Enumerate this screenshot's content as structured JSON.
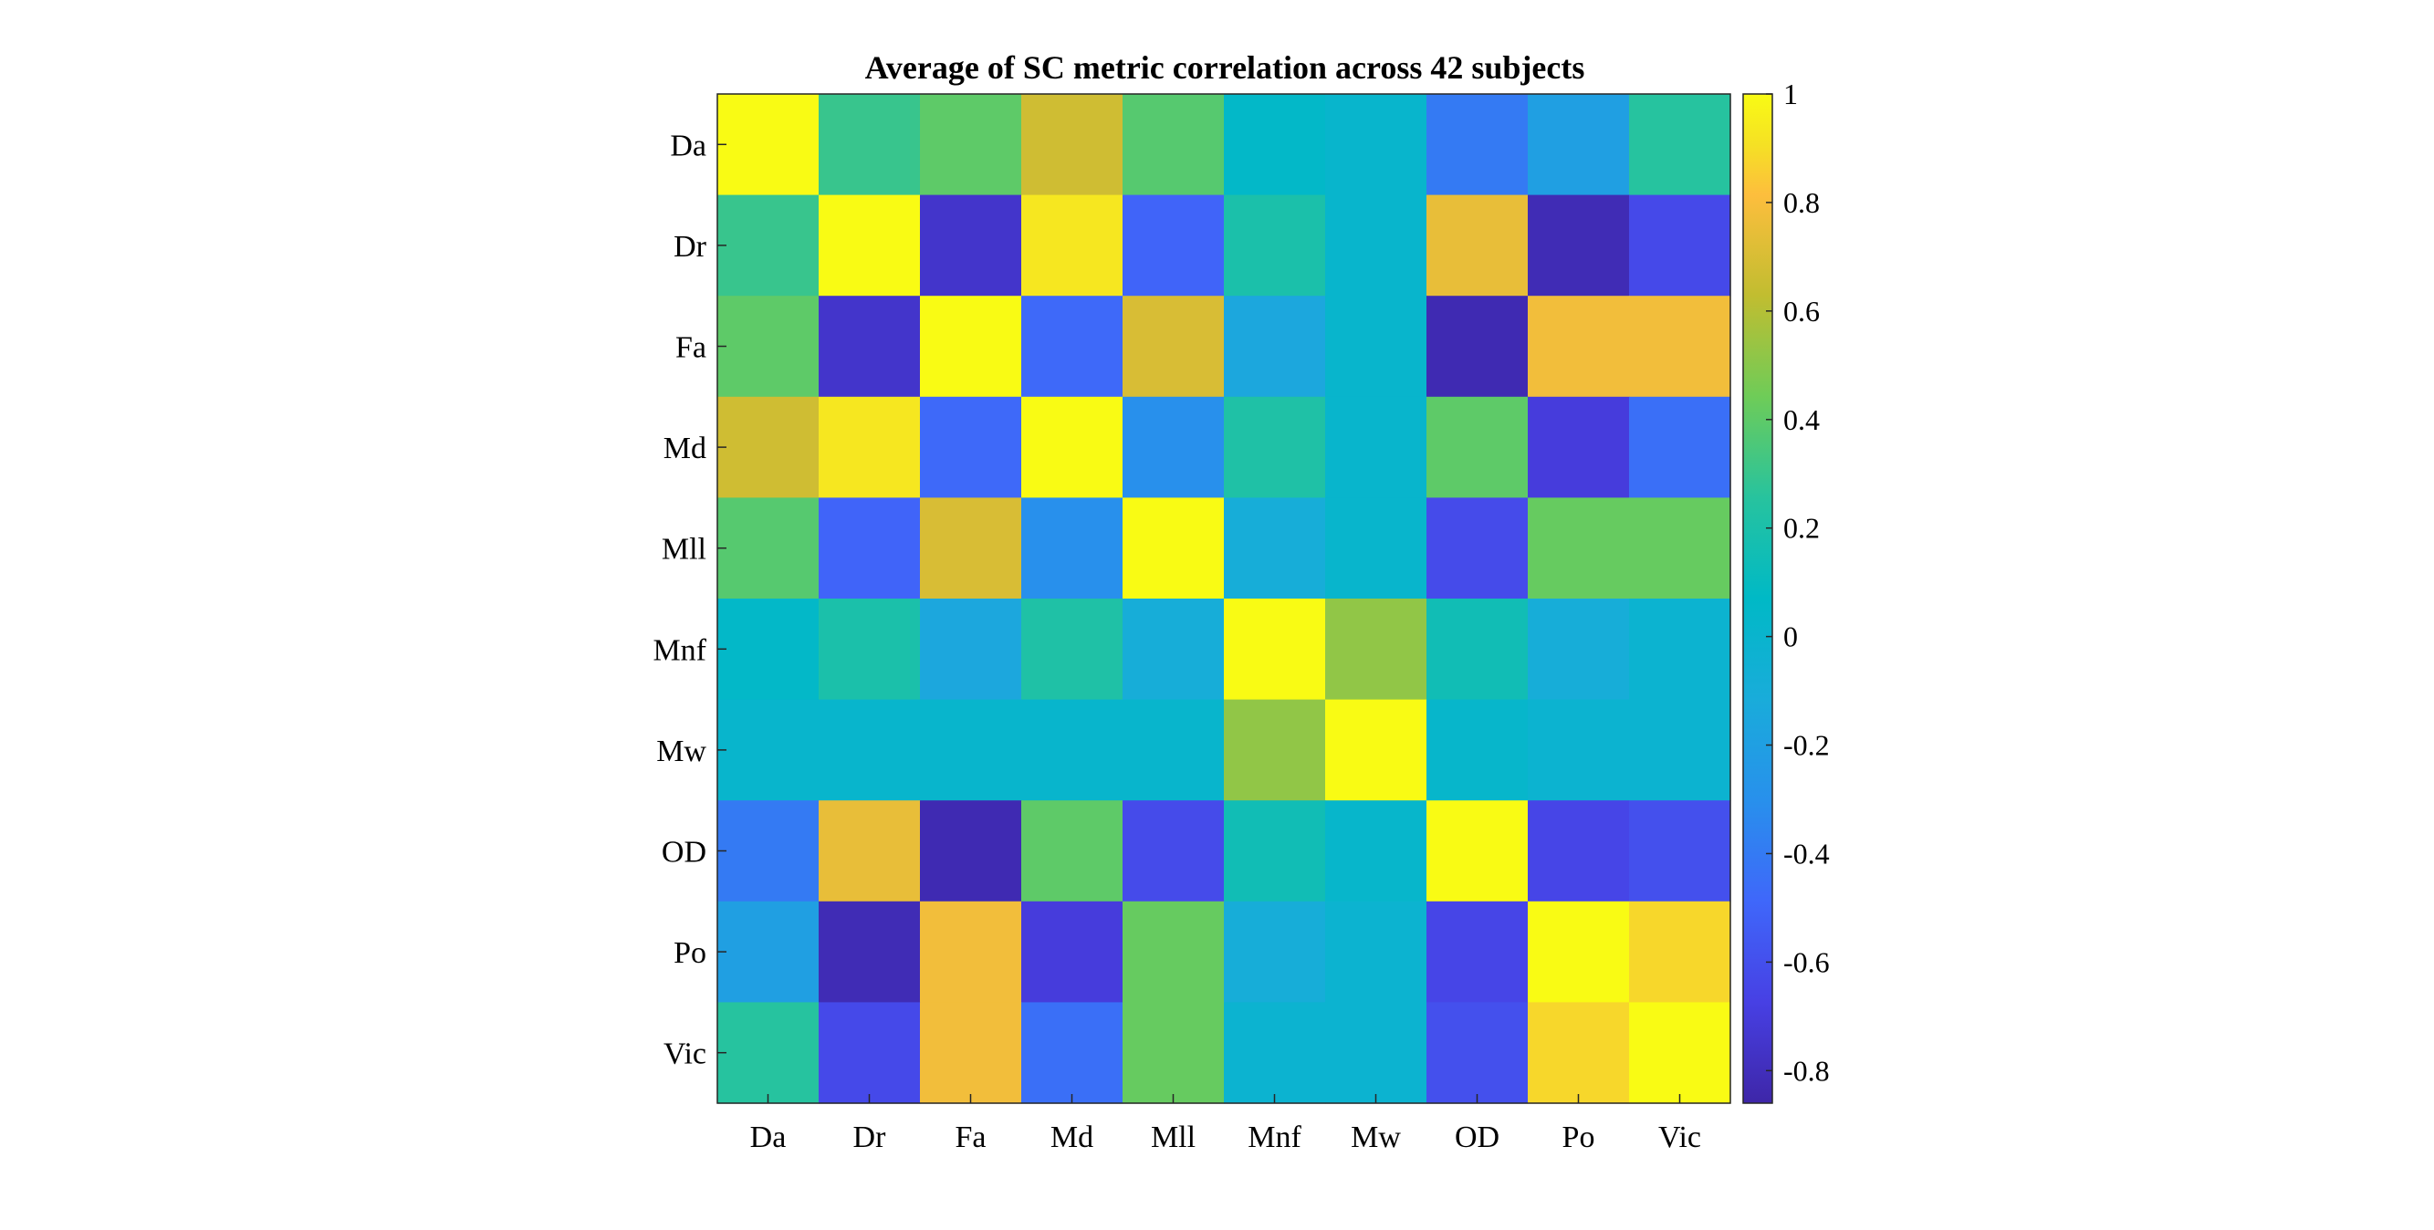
{
  "chart_data": {
    "type": "heatmap",
    "title": "Average of SC metric correlation across 42 subjects",
    "x_categories": [
      "Da",
      "Dr",
      "Fa",
      "Md",
      "Mll",
      "Mnf",
      "Mw",
      "OD",
      "Po",
      "Vic"
    ],
    "y_categories": [
      "Da",
      "Dr",
      "Fa",
      "Md",
      "Mll",
      "Mnf",
      "Mw",
      "OD",
      "Po",
      "Vic"
    ],
    "values": [
      [
        1.0,
        0.3,
        0.4,
        0.67,
        0.38,
        0.05,
        0.01,
        -0.4,
        -0.2,
        0.25
      ],
      [
        0.3,
        1.0,
        -0.75,
        0.93,
        -0.5,
        0.2,
        0.01,
        0.75,
        -0.82,
        -0.63
      ],
      [
        0.4,
        -0.75,
        1.0,
        -0.48,
        0.7,
        -0.15,
        0.01,
        -0.83,
        0.78,
        0.78
      ],
      [
        0.67,
        0.93,
        -0.48,
        1.0,
        -0.3,
        0.22,
        0.01,
        0.4,
        -0.7,
        -0.45
      ],
      [
        0.38,
        -0.5,
        0.7,
        -0.3,
        1.0,
        -0.1,
        0.01,
        -0.62,
        0.42,
        0.42
      ],
      [
        0.05,
        0.2,
        -0.15,
        0.22,
        -0.1,
        1.0,
        0.52,
        0.15,
        -0.1,
        -0.02
      ],
      [
        0.01,
        0.01,
        0.01,
        0.01,
        0.01,
        0.52,
        1.0,
        0.02,
        -0.02,
        -0.02
      ],
      [
        -0.4,
        0.75,
        -0.83,
        0.4,
        -0.62,
        0.15,
        0.02,
        1.0,
        -0.65,
        -0.6
      ],
      [
        -0.2,
        -0.82,
        0.78,
        -0.7,
        0.42,
        -0.1,
        -0.02,
        -0.65,
        1.0,
        0.88
      ],
      [
        0.25,
        -0.63,
        0.78,
        -0.45,
        0.42,
        -0.02,
        -0.02,
        -0.6,
        0.88,
        1.0
      ]
    ],
    "colorbar": {
      "min": -0.86,
      "max": 1.0,
      "ticks": [
        1,
        0.8,
        0.6,
        0.4,
        0.2,
        0,
        -0.2,
        -0.4,
        -0.6,
        -0.8
      ],
      "tick_labels": [
        "1",
        "0.8",
        "0.6",
        "0.4",
        "0.2",
        "0",
        "-0.2",
        "-0.4",
        "-0.6",
        "-0.8"
      ],
      "placement": "right"
    },
    "colormap": "parula",
    "grid": false
  }
}
